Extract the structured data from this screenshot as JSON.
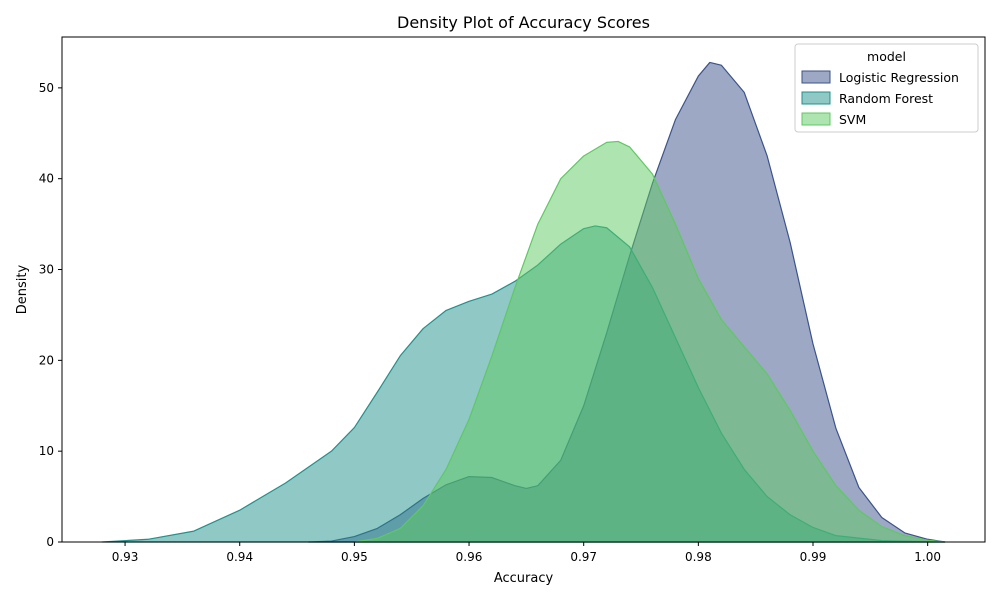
{
  "chart_data": {
    "type": "area",
    "title": "Density Plot of Accuracy Scores",
    "xlabel": "Accuracy",
    "ylabel": "Density",
    "xlim": [
      0.9245,
      1.005
    ],
    "ylim": [
      0,
      55.6
    ],
    "xticks": [
      0.93,
      0.94,
      0.95,
      0.96,
      0.97,
      0.98,
      0.99,
      1.0
    ],
    "xtick_labels": [
      "0.93",
      "0.94",
      "0.95",
      "0.96",
      "0.97",
      "0.98",
      "0.99",
      "1.00"
    ],
    "yticks": [
      0,
      10,
      20,
      30,
      40,
      50
    ],
    "ytick_labels": [
      "0",
      "10",
      "20",
      "30",
      "40",
      "50"
    ],
    "grid": false,
    "legend": {
      "title": "model",
      "placement": "top-right"
    },
    "series": [
      {
        "name": "Logistic Regression",
        "fill": "#3b528b",
        "stroke": "#3b528b",
        "fill_opacity": 0.5,
        "points": [
          [
            0.946,
            0
          ],
          [
            0.948,
            0.1
          ],
          [
            0.95,
            0.6
          ],
          [
            0.952,
            1.5
          ],
          [
            0.954,
            3.0
          ],
          [
            0.956,
            4.8
          ],
          [
            0.958,
            6.3
          ],
          [
            0.96,
            7.2
          ],
          [
            0.962,
            7.1
          ],
          [
            0.964,
            6.2
          ],
          [
            0.965,
            5.9
          ],
          [
            0.966,
            6.2
          ],
          [
            0.968,
            9.0
          ],
          [
            0.97,
            15.0
          ],
          [
            0.972,
            23.0
          ],
          [
            0.974,
            31.5
          ],
          [
            0.976,
            39.5
          ],
          [
            0.978,
            46.5
          ],
          [
            0.98,
            51.3
          ],
          [
            0.981,
            52.8
          ],
          [
            0.982,
            52.5
          ],
          [
            0.984,
            49.5
          ],
          [
            0.986,
            42.5
          ],
          [
            0.988,
            33.0
          ],
          [
            0.99,
            21.8
          ],
          [
            0.992,
            12.5
          ],
          [
            0.994,
            6.0
          ],
          [
            0.996,
            2.7
          ],
          [
            0.998,
            1.0
          ],
          [
            1.0,
            0.3
          ],
          [
            1.0015,
            0
          ]
        ]
      },
      {
        "name": "Random Forest",
        "fill": "#21918c",
        "stroke": "#21918c",
        "fill_opacity": 0.5,
        "points": [
          [
            0.928,
            0
          ],
          [
            0.932,
            0.3
          ],
          [
            0.936,
            1.2
          ],
          [
            0.94,
            3.5
          ],
          [
            0.944,
            6.5
          ],
          [
            0.948,
            10.0
          ],
          [
            0.95,
            12.6
          ],
          [
            0.952,
            16.5
          ],
          [
            0.954,
            20.5
          ],
          [
            0.956,
            23.5
          ],
          [
            0.958,
            25.5
          ],
          [
            0.96,
            26.5
          ],
          [
            0.962,
            27.3
          ],
          [
            0.964,
            28.7
          ],
          [
            0.966,
            30.5
          ],
          [
            0.968,
            32.8
          ],
          [
            0.97,
            34.5
          ],
          [
            0.971,
            34.8
          ],
          [
            0.972,
            34.6
          ],
          [
            0.974,
            32.5
          ],
          [
            0.976,
            28.0
          ],
          [
            0.978,
            22.5
          ],
          [
            0.98,
            17.0
          ],
          [
            0.982,
            12.0
          ],
          [
            0.984,
            8.0
          ],
          [
            0.986,
            5.0
          ],
          [
            0.988,
            3.0
          ],
          [
            0.99,
            1.6
          ],
          [
            0.992,
            0.7
          ],
          [
            0.996,
            0.15
          ],
          [
            1.0015,
            0
          ]
        ]
      },
      {
        "name": "SVM",
        "fill": "#5ec962",
        "stroke": "#5ec962",
        "fill_opacity": 0.5,
        "points": [
          [
            0.95,
            0
          ],
          [
            0.952,
            0.4
          ],
          [
            0.954,
            1.5
          ],
          [
            0.956,
            4.0
          ],
          [
            0.958,
            8.0
          ],
          [
            0.96,
            13.5
          ],
          [
            0.962,
            20.5
          ],
          [
            0.964,
            28.0
          ],
          [
            0.966,
            35.0
          ],
          [
            0.968,
            40.0
          ],
          [
            0.97,
            42.5
          ],
          [
            0.972,
            44.0
          ],
          [
            0.973,
            44.1
          ],
          [
            0.974,
            43.5
          ],
          [
            0.976,
            40.5
          ],
          [
            0.978,
            35.0
          ],
          [
            0.98,
            29.0
          ],
          [
            0.982,
            24.5
          ],
          [
            0.984,
            21.5
          ],
          [
            0.986,
            18.5
          ],
          [
            0.988,
            14.5
          ],
          [
            0.99,
            10.0
          ],
          [
            0.992,
            6.2
          ],
          [
            0.994,
            3.5
          ],
          [
            0.996,
            1.7
          ],
          [
            0.998,
            0.7
          ],
          [
            1.0,
            0.2
          ],
          [
            1.0015,
            0
          ]
        ]
      }
    ]
  }
}
